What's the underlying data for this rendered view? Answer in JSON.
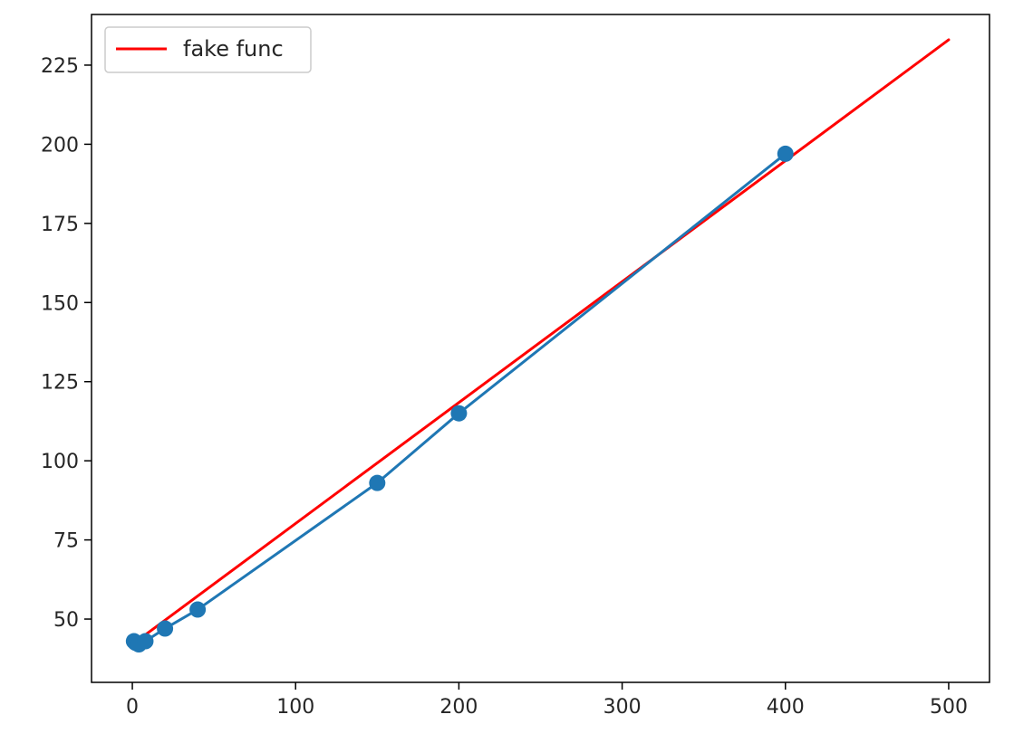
{
  "chart_data": {
    "type": "line",
    "title": "",
    "xlabel": "",
    "ylabel": "",
    "xlim": [
      -25,
      525
    ],
    "ylim": [
      30,
      241
    ],
    "x_ticks": [
      0,
      100,
      200,
      300,
      400,
      500
    ],
    "y_ticks": [
      50,
      75,
      100,
      125,
      150,
      175,
      200,
      225
    ],
    "grid": false,
    "legend": {
      "placement": "upper-left"
    },
    "series": [
      {
        "name": "fake func",
        "style": "line",
        "color": "#ff0000",
        "x": [
          0,
          500
        ],
        "y": [
          42,
          233
        ]
      },
      {
        "style": "line-marker",
        "color": "#1f77b4",
        "x": [
          1,
          2,
          4,
          8,
          20,
          40,
          150,
          200,
          400
        ],
        "y": [
          43,
          42.5,
          42,
          43,
          47,
          53,
          93,
          115,
          197
        ]
      }
    ]
  }
}
